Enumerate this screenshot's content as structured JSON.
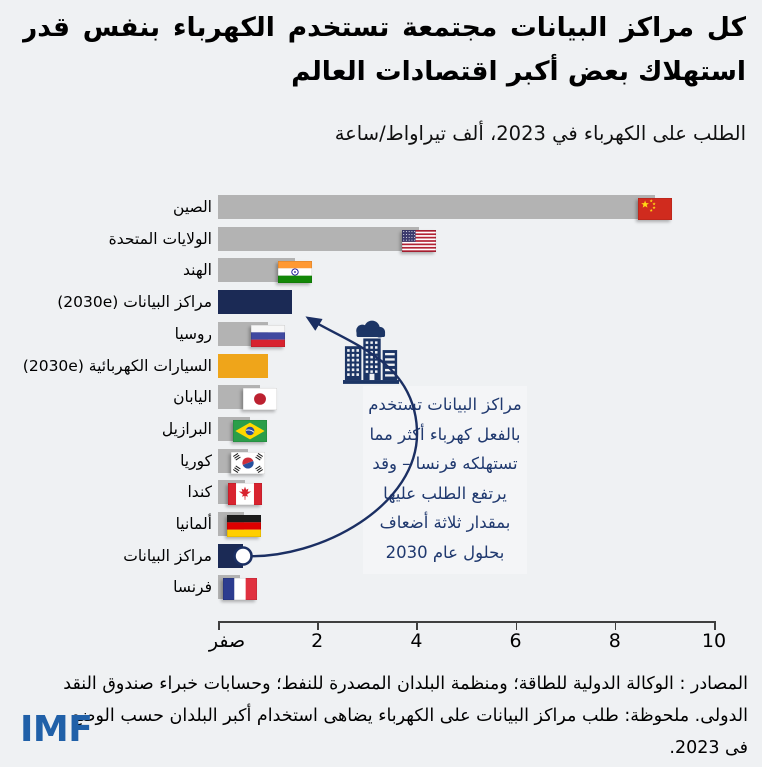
{
  "header": {
    "title_line1": "كل مراكز البيانات مجتمعة تستخدم الكهرباء بنفس قدر",
    "title_line2": "استهلاك بعض أكبر اقتصادات العالم",
    "subtitle": "الطلب على الكهرباء في 2023، ألف تيراواط/ساعة"
  },
  "chart_data": {
    "type": "bar",
    "orientation": "horizontal",
    "title": "كل مراكز البيانات مجتمعة تستخدم الكهرباء بنفس قدر استهلاك بعض أكبر اقتصادات العالم",
    "unit_label": "ألف تيراواط/ساعة",
    "year": "2023",
    "xlabel": "",
    "ylabel": "",
    "xlim": [
      0,
      10
    ],
    "x_tick_values": [
      0,
      2,
      4,
      6,
      8,
      10
    ],
    "x_tick_labels": [
      "صفر",
      "2",
      "4",
      "6",
      "8",
      "10"
    ],
    "grid": false,
    "rows": [
      {
        "key": "china",
        "label": "الصين",
        "value": 8.8,
        "type": "country",
        "flag": "china"
      },
      {
        "key": "united-states",
        "label": "الولايات المتحدة",
        "value": 4.05,
        "type": "country",
        "flag": "us"
      },
      {
        "key": "india",
        "label": "الهند",
        "value": 1.55,
        "type": "country",
        "flag": "india"
      },
      {
        "key": "data-centers-2030e",
        "label": "مراكز البيانات (2030e)",
        "value": 1.5,
        "type": "datacenter",
        "flag": null
      },
      {
        "key": "russia",
        "label": "روسيا",
        "value": 1.0,
        "type": "country",
        "flag": "russia"
      },
      {
        "key": "electric-vehicles-2030e",
        "label": "السيارات الكهربائية (2030e)",
        "value": 1.0,
        "type": "ev",
        "flag": null
      },
      {
        "key": "japan",
        "label": "اليابان",
        "value": 0.85,
        "type": "country",
        "flag": "japan"
      },
      {
        "key": "brazil",
        "label": "البرازيل",
        "value": 0.65,
        "type": "country",
        "flag": "brazil"
      },
      {
        "key": "korea",
        "label": "كوريا",
        "value": 0.6,
        "type": "country",
        "flag": "korea"
      },
      {
        "key": "canada",
        "label": "كندا",
        "value": 0.55,
        "type": "country",
        "flag": "canada"
      },
      {
        "key": "germany",
        "label": "ألمانيا",
        "value": 0.52,
        "type": "country",
        "flag": "germany"
      },
      {
        "key": "data-centers",
        "label": "مراكز البيانات",
        "value": 0.5,
        "type": "datacenter",
        "flag": null,
        "marker": true
      },
      {
        "key": "france",
        "label": "فرنسا",
        "value": 0.45,
        "type": "country",
        "flag": "france"
      }
    ],
    "colors": {
      "country_bar": "#b3b3b3",
      "data_center_bar": "#1b2a55",
      "ev_bar": "#efa51a",
      "annotation_text": "#20396f",
      "arrow": "#1b2f63",
      "background": "#eff1f3"
    }
  },
  "annotation": {
    "text": "مراكز البيانات تستخدم\nبالفعل كهرباء أكثر مما\nتستهلكه فرنسا – وقد\nيرتفع الطلب عليها\nبمقدار ثلاثة أضعاف\nبحلول عام 2030"
  },
  "footer": {
    "source_note": "المصادر : الوكالة الدولية للطاقة؛ ومنظمة البلدان المصدرة للنفط؛ وحسابات خبراء صندوق النقد\nالدولى. ملحوظة: طلب مراكز البيانات على الكهرباء يضاهى استخدام أكبر البلدان حسب الوضع\nفى 2023.",
    "logo_text": "IMF"
  }
}
